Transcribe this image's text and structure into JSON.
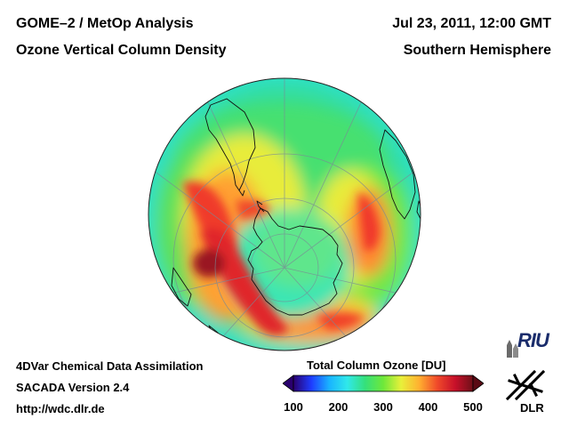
{
  "header": {
    "title_line1": "GOME–2 / MetOp Analysis",
    "title_line2": "Ozone Vertical Column Density",
    "date": "Jul 23, 2011, 12:00 GMT",
    "region": "Southern Hemisphere"
  },
  "footer": {
    "line1": "4DVar Chemical Data Assimilation",
    "line2": "SACADA Version 2.4",
    "line3": "http://wdc.dlr.de"
  },
  "colorbar": {
    "title": "Total Column Ozone [DU]",
    "ticks": [
      "100",
      "200",
      "300",
      "400",
      "500"
    ],
    "min": 100,
    "max": 500,
    "stops": [
      "#2a006e",
      "#1e3cff",
      "#19b4ff",
      "#30e8ea",
      "#35e07a",
      "#6ee83a",
      "#e8f03a",
      "#ffb030",
      "#f04a2a",
      "#c8102a",
      "#6e1018"
    ]
  },
  "logos": {
    "riu": "RIU",
    "dlr": "DLR"
  },
  "colors": {
    "coastline": "#111111",
    "background": "#ffffff"
  }
}
